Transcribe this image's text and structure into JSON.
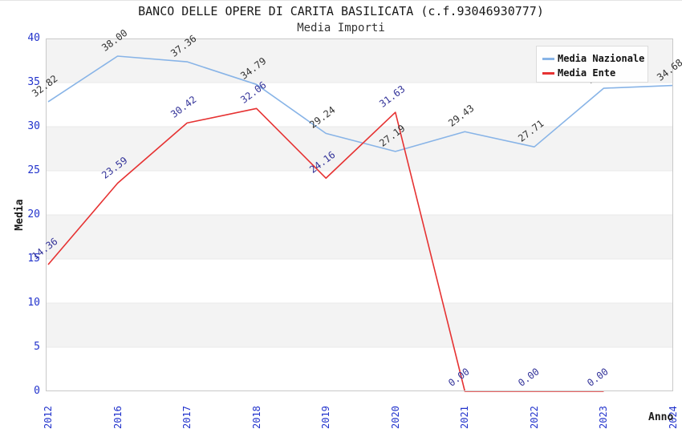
{
  "chart_data": {
    "type": "line",
    "title": "BANCO DELLE OPERE DI CARITA BASILICATA (c.f.93046930777)",
    "subtitle": "Media Importi",
    "xlabel": "Anno",
    "ylabel": "Media",
    "categories": [
      "2012",
      "2016",
      "2017",
      "2018",
      "2019",
      "2020",
      "2021",
      "2022",
      "2023",
      "2024"
    ],
    "ylim": [
      0,
      40
    ],
    "yticks": [
      0,
      5,
      10,
      15,
      20,
      25,
      30,
      35,
      40
    ],
    "grid": "alternating-horizontal-bands",
    "legend_position": "top-right",
    "colors": {
      "band": "#f3f3f3",
      "gridline": "#e8e8e8",
      "plot_border": "#c9c9c9",
      "tick_label": "#2233cc",
      "national_line": "#88b4e7",
      "ente_line": "#e63232",
      "national_point_label": "#333333",
      "ente_point_label": "#333399"
    },
    "series": [
      {
        "name": "Media Nazionale",
        "color": "#88b4e7",
        "label_color": "#333333",
        "values": [
          32.82,
          38.0,
          37.36,
          34.79,
          29.24,
          27.19,
          29.43,
          27.71,
          34.36,
          34.68
        ],
        "point_labels": [
          "32.82",
          "38.00",
          "37.36",
          "34.79",
          "29.24",
          "27.19",
          "29.43",
          "27.71",
          "34.36",
          "34.68"
        ]
      },
      {
        "name": "Media Ente",
        "color": "#e63232",
        "label_color": "#333399",
        "values": [
          14.36,
          23.59,
          30.42,
          32.06,
          24.16,
          31.63,
          0.0,
          0.0,
          0.0,
          null
        ],
        "point_labels": [
          "14.36",
          "23.59",
          "30.42",
          "32.06",
          "24.16",
          "31.63",
          "0.00",
          "0.00",
          "0.00",
          null
        ]
      }
    ]
  }
}
